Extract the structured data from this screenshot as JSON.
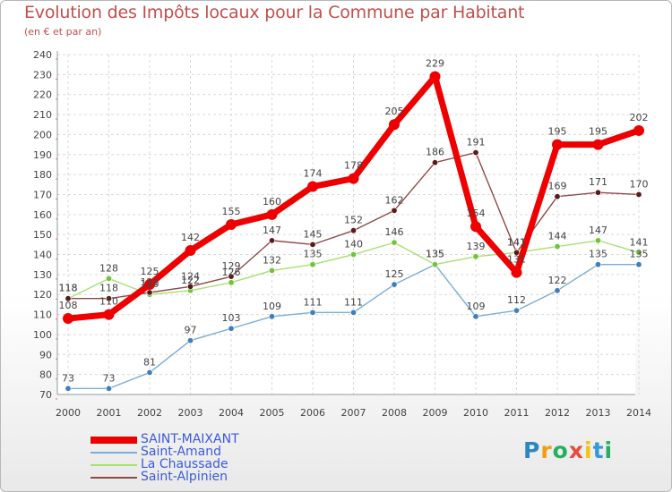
{
  "header": {
    "title": "Evolution des Impôts locaux pour la Commune par Habitant",
    "subtitle": "(en € et par an)"
  },
  "logo": {
    "letters": [
      "P",
      "r",
      "o",
      "x",
      "i",
      "t",
      "i"
    ],
    "colors": [
      "#2e86c1",
      "#f39c12",
      "#27ae60",
      "#e74c3c",
      "#f1c40f",
      "#3498db",
      "#27ae60"
    ]
  },
  "chart_data": {
    "type": "line",
    "title": "Evolution des Impôts locaux pour la Commune par Habitant",
    "subtitle": "(en € et par an)",
    "xlabel": "",
    "ylabel": "",
    "x": [
      "2000",
      "2001",
      "2002",
      "2003",
      "2004",
      "2005",
      "2006",
      "2007",
      "2008",
      "2009",
      "2010",
      "2011",
      "2012",
      "2013",
      "2014"
    ],
    "ylim": [
      70,
      240
    ],
    "yticks": [
      70,
      80,
      90,
      100,
      110,
      120,
      130,
      140,
      150,
      160,
      170,
      180,
      190,
      200,
      210,
      220,
      230,
      240
    ],
    "grid": true,
    "legend_position": "bottom-left",
    "series": [
      {
        "name": "SAINT-MAIXANT",
        "color": "#ee0000",
        "markerColor": "#ee0000",
        "width": 7,
        "marker": 6,
        "values": [
          108,
          110,
          125,
          142,
          155,
          160,
          174,
          178,
          205,
          229,
          154,
          131,
          195,
          195,
          202
        ]
      },
      {
        "name": "Saint-Amand",
        "color": "#7aaed6",
        "markerColor": "#3f7fc0",
        "width": 1.4,
        "marker": 3.2,
        "values": [
          73,
          73,
          81,
          97,
          103,
          109,
          111,
          111,
          125,
          135,
          109,
          112,
          122,
          135,
          135
        ]
      },
      {
        "name": "La Chaussade",
        "color": "#a8e070",
        "markerColor": "#6fc43a",
        "width": 1.4,
        "marker": 3.2,
        "values": [
          118,
          128,
          120,
          122,
          126,
          132,
          135,
          140,
          146,
          135,
          139,
          141,
          144,
          147,
          141
        ]
      },
      {
        "name": "Saint-Alpinien",
        "color": "#8e4a4a",
        "markerColor": "#5b1a1a",
        "width": 1.4,
        "marker": 3.2,
        "values": [
          118,
          118,
          121,
          124,
          129,
          147,
          145,
          152,
          162,
          186,
          191,
          141,
          169,
          171,
          170
        ]
      }
    ]
  }
}
